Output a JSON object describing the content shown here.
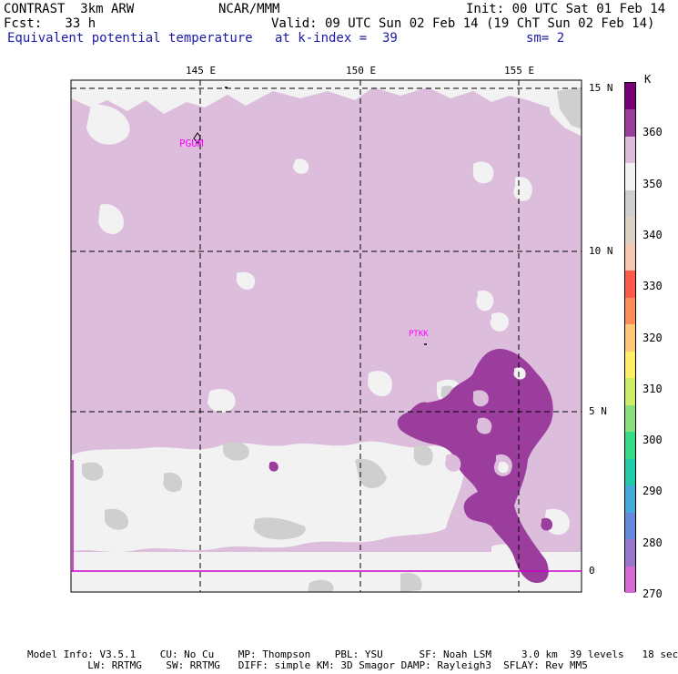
{
  "header": {
    "model": "CONTRAST  3km ARW",
    "center": "NCAR/MMM",
    "init": "Init: 00 UTC Sat 01 Feb 14",
    "fcst": "Fcst:   33 h",
    "valid": "Valid: 09 UTC Sun 02 Feb 14 (19 ChT Sun 02 Feb 14)",
    "field": "Equivalent potential temperature",
    "level": "at k-index =  39",
    "smooth": "sm= 2"
  },
  "map": {
    "lon_labels": [
      "145 E",
      "150 E",
      "155 E"
    ],
    "lat_labels": [
      "15 N",
      "10 N",
      "5 N",
      "0"
    ],
    "stations": [
      "PGUM",
      "PTKK"
    ]
  },
  "colorbar": {
    "unit": "K",
    "labels": [
      "360",
      "350",
      "340",
      "330",
      "320",
      "310",
      "300",
      "290",
      "280",
      "270"
    ],
    "colors": [
      "#7a0077",
      "#9b3d9d",
      "#dcbddc",
      "#f2f2f2",
      "#cfcfcf",
      "#ddd1c6",
      "#f5c8b4",
      "#ff5a4a",
      "#ff8c5a",
      "#ffc878",
      "#ffee66",
      "#ccee66",
      "#88e07a",
      "#33dd88",
      "#22ccaa",
      "#44aadd",
      "#6688dd",
      "#9977cc",
      "#d46ad4"
    ]
  },
  "footer": {
    "line1": "Model Info: V3.5.1    CU: No Cu    MP: Thompson    PBL: YSU      SF: Noah LSM     3.0 km  39 levels   18 sec",
    "line2": "          LW: RRTMG    SW: RRTMG   DIFF: simple KM: 3D Smagor DAMP: Rayleigh3  SFLAY: Rev MM5"
  }
}
